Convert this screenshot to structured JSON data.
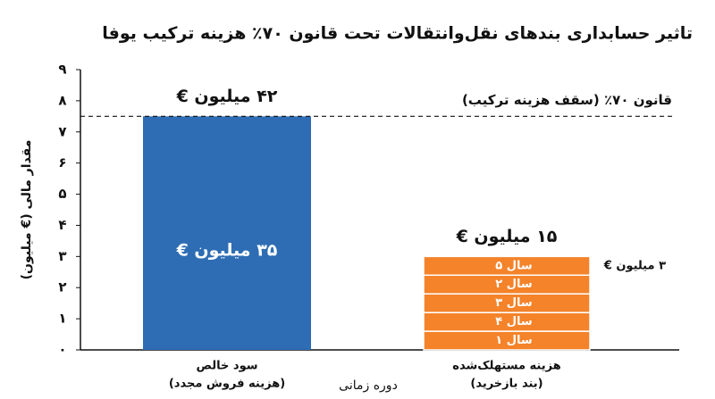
{
  "chart_data": {
    "type": "bar",
    "title": "تاثیر حسابداری بندهای نقل‌وانتقالات تحت قانون ۷۰٪ هزینه ترکیب یوفا",
    "y_label": "مقدار مالی (€ میلیون)",
    "x_label": "دوره زمانی",
    "ylim": [
      0,
      9
    ],
    "yticks": [
      {
        "value": 0,
        "label": "۰"
      },
      {
        "value": 1,
        "label": "۱"
      },
      {
        "value": 2,
        "label": "۲"
      },
      {
        "value": 3,
        "label": "۳"
      },
      {
        "value": 4,
        "label": "۴"
      },
      {
        "value": 5,
        "label": "۵"
      },
      {
        "value": 6,
        "label": "۶"
      },
      {
        "value": 7,
        "label": "۷"
      },
      {
        "value": 8,
        "label": "۸"
      },
      {
        "value": 9,
        "label": "۹"
      }
    ],
    "threshold": {
      "value": 7.5,
      "label": "قانون ۷۰٪ (سقف هزینه ترکیب)"
    },
    "bars": [
      {
        "category": "سود خالص",
        "note": "(هزینه فروش مجدد)",
        "value": 7.5,
        "color": "#2e6db4",
        "label_top": "۴۲ میلیون €",
        "label_inner": "۳۵ میلیون €"
      },
      {
        "category": "هزینه مستهلک‌شده",
        "note": "(بند بازخرید)",
        "color": "#f4832a",
        "label_top": "۱۵ میلیون €",
        "segment_label": "۳ میلیون €",
        "segments": [
          {
            "name": "سال ۱",
            "value": 0.6
          },
          {
            "name": "سال ۴",
            "value": 0.6
          },
          {
            "name": "سال ۳",
            "value": 0.6
          },
          {
            "name": "سال ۲",
            "value": 0.6
          },
          {
            "name": "سال ۵",
            "value": 0.6
          }
        ]
      }
    ]
  }
}
